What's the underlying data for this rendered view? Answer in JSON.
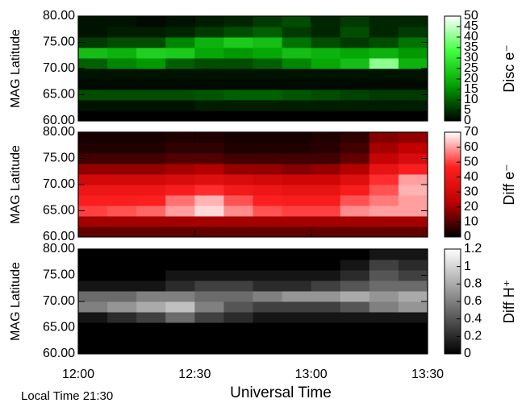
{
  "chart_data": [
    {
      "type": "heatmap",
      "ylabel": "MAG Latitude",
      "colorbar_label": "Disc e⁻",
      "ylim": [
        60,
        80
      ],
      "yticks": [
        {
          "value": 60,
          "label": "60.00"
        },
        {
          "value": 65,
          "label": "65.00"
        },
        {
          "value": 70,
          "label": "70.00"
        },
        {
          "value": 75,
          "label": "75.00"
        },
        {
          "value": 80,
          "label": "80.00"
        }
      ],
      "zlim": [
        0,
        50
      ],
      "zticks": [
        0,
        5,
        10,
        15,
        20,
        25,
        30,
        35,
        40,
        45,
        50
      ],
      "colormap": [
        "#000000",
        "#00a000",
        "#40ff40",
        "#ffffff"
      ],
      "x": [
        12.0,
        12.125,
        12.25,
        12.375,
        12.5,
        12.625,
        12.75,
        12.875,
        13.0,
        13.125,
        13.25,
        13.375
      ],
      "y": [
        60,
        62,
        64,
        66,
        68,
        70,
        72,
        74,
        76,
        78
      ],
      "z": [
        [
          0,
          0,
          0,
          0,
          0,
          0,
          0,
          0,
          0,
          0,
          0,
          0
        ],
        [
          2,
          2,
          2,
          2,
          3,
          3,
          3,
          3,
          3,
          3,
          3,
          3
        ],
        [
          8,
          8,
          8,
          8,
          9,
          10,
          10,
          9,
          8,
          7,
          6,
          6
        ],
        [
          1,
          1,
          1,
          1,
          1,
          1,
          1,
          1,
          1,
          1,
          1,
          1
        ],
        [
          2,
          2,
          2,
          2,
          2,
          2,
          2,
          2,
          2,
          2,
          2,
          2
        ],
        [
          10,
          14,
          16,
          10,
          8,
          8,
          10,
          14,
          18,
          22,
          40,
          20
        ],
        [
          22,
          20,
          25,
          24,
          18,
          16,
          18,
          22,
          20,
          18,
          20,
          16
        ],
        [
          6,
          8,
          8,
          14,
          20,
          24,
          22,
          12,
          8,
          6,
          8,
          12
        ],
        [
          2,
          3,
          3,
          4,
          6,
          8,
          10,
          6,
          4,
          8,
          4,
          6
        ],
        [
          2,
          2,
          1,
          2,
          3,
          4,
          6,
          8,
          4,
          6,
          4,
          4
        ]
      ]
    },
    {
      "type": "heatmap",
      "ylabel": "MAG Latitude",
      "colorbar_label": "Diff e⁻",
      "ylim": [
        60,
        80
      ],
      "yticks": [
        {
          "value": 60,
          "label": "60.00"
        },
        {
          "value": 65,
          "label": "65.00"
        },
        {
          "value": 70,
          "label": "70.00"
        },
        {
          "value": 75,
          "label": "75.00"
        },
        {
          "value": 80,
          "label": "80.00"
        }
      ],
      "zlim": [
        0,
        70
      ],
      "zticks": [
        0,
        10,
        20,
        30,
        40,
        50,
        60,
        70
      ],
      "colormap": [
        "#000000",
        "#c00000",
        "#ff2020",
        "#ffffff"
      ],
      "x": [
        12.0,
        12.125,
        12.25,
        12.375,
        12.5,
        12.625,
        12.75,
        12.875,
        13.0,
        13.125,
        13.25,
        13.375
      ],
      "y": [
        60,
        62,
        64,
        66,
        68,
        70,
        72,
        74,
        76,
        78
      ],
      "z": [
        [
          12,
          12,
          12,
          12,
          12,
          12,
          12,
          12,
          12,
          12,
          12,
          12
        ],
        [
          20,
          20,
          20,
          20,
          20,
          20,
          20,
          20,
          20,
          20,
          20,
          20
        ],
        [
          50,
          52,
          54,
          60,
          66,
          58,
          52,
          50,
          50,
          58,
          60,
          60
        ],
        [
          45,
          45,
          46,
          55,
          62,
          52,
          46,
          44,
          44,
          52,
          56,
          60
        ],
        [
          40,
          40,
          40,
          44,
          48,
          42,
          40,
          38,
          38,
          44,
          52,
          62
        ],
        [
          30,
          30,
          30,
          32,
          34,
          32,
          30,
          28,
          28,
          34,
          48,
          60
        ],
        [
          18,
          18,
          18,
          20,
          22,
          18,
          18,
          16,
          18,
          22,
          38,
          45
        ],
        [
          8,
          8,
          8,
          10,
          10,
          8,
          8,
          8,
          8,
          12,
          26,
          32
        ],
        [
          4,
          4,
          4,
          6,
          6,
          4,
          4,
          4,
          5,
          8,
          20,
          24
        ],
        [
          3,
          3,
          3,
          4,
          4,
          3,
          3,
          3,
          4,
          6,
          16,
          18
        ]
      ]
    },
    {
      "type": "heatmap",
      "ylabel": "MAG Latitude",
      "colorbar_label": "Diff H⁺",
      "ylim": [
        60,
        80
      ],
      "yticks": [
        {
          "value": 60,
          "label": "60.00"
        },
        {
          "value": 65,
          "label": "65.00"
        },
        {
          "value": 70,
          "label": "70.00"
        },
        {
          "value": 75,
          "label": "75.00"
        },
        {
          "value": 80,
          "label": "80.00"
        }
      ],
      "zlim": [
        0,
        1.2
      ],
      "zticks": [
        0,
        0.2,
        0.4,
        0.6,
        0.8,
        1,
        1.2
      ],
      "colormap": [
        "#000000",
        "#808080",
        "#ffffff"
      ],
      "xlabel": "Universal Time",
      "annotation": "Local Time 21:30",
      "xlim": [
        12,
        13.5
      ],
      "xticks": [
        {
          "value": 12,
          "label": "12:00"
        },
        {
          "value": 12.5,
          "label": "12:30"
        },
        {
          "value": 13,
          "label": "13:00"
        },
        {
          "value": 13.5,
          "label": "13:30"
        }
      ],
      "x": [
        12.0,
        12.125,
        12.25,
        12.375,
        12.5,
        12.625,
        12.75,
        12.875,
        13.0,
        13.125,
        13.25,
        13.375
      ],
      "y": [
        60,
        62,
        64,
        66,
        68,
        70,
        72,
        74,
        76,
        78
      ],
      "z": [
        [
          0,
          0,
          0,
          0,
          0,
          0,
          0,
          0,
          0,
          0,
          0,
          0
        ],
        [
          0,
          0,
          0,
          0,
          0,
          0,
          0,
          0,
          0,
          0,
          0,
          0
        ],
        [
          0,
          0,
          0,
          0,
          0,
          0,
          0,
          0,
          0,
          0,
          0,
          0
        ],
        [
          0.1,
          0.2,
          0.3,
          0.5,
          0.3,
          0.2,
          0.1,
          0.1,
          0.1,
          0.1,
          0.1,
          0.1
        ],
        [
          0.6,
          0.7,
          0.8,
          0.9,
          0.6,
          0.4,
          0.3,
          0.3,
          0.3,
          0.4,
          0.6,
          0.7
        ],
        [
          0.5,
          0.5,
          0.6,
          0.6,
          0.5,
          0.5,
          0.6,
          0.7,
          0.7,
          0.8,
          0.7,
          0.8
        ],
        [
          0.1,
          0.1,
          0.1,
          0.2,
          0.3,
          0.3,
          0.2,
          0.2,
          0.3,
          0.4,
          0.5,
          0.5
        ],
        [
          0,
          0,
          0,
          0.1,
          0.1,
          0.1,
          0.1,
          0.1,
          0.1,
          0.2,
          0.4,
          0.3
        ],
        [
          0,
          0,
          0,
          0,
          0,
          0,
          0,
          0,
          0,
          0.1,
          0.3,
          0.2
        ],
        [
          0,
          0,
          0,
          0,
          0,
          0,
          0,
          0,
          0,
          0,
          0.1,
          0.1
        ]
      ]
    }
  ]
}
